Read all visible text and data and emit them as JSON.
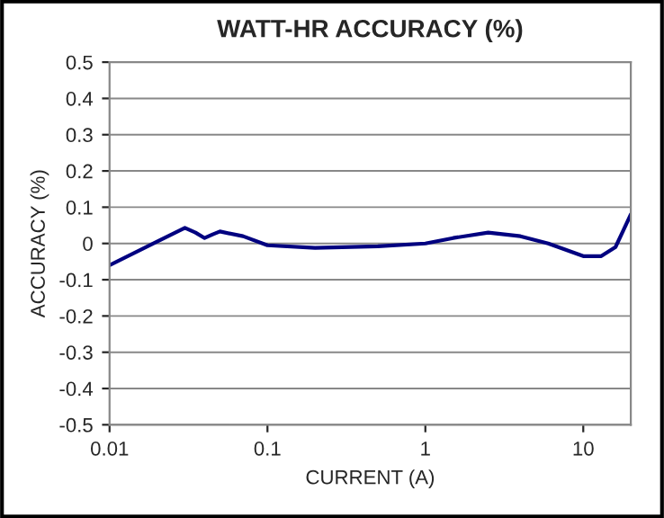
{
  "chart_data": {
    "type": "line",
    "title": "WATT-HR ACCURACY (%)",
    "xlabel": "CURRENT (A)",
    "ylabel": "ACCURACY (%)",
    "log": "x",
    "grid": "y",
    "marker": "none",
    "line_style": "solid",
    "xlim": [
      0.01,
      20
    ],
    "xticks": [
      0.01,
      0.1,
      1,
      10
    ],
    "ylim": [
      -0.5,
      0.5
    ],
    "yticks": [
      -0.5,
      -0.4,
      -0.3,
      -0.2,
      -0.1,
      0,
      0.1,
      0.2,
      0.3,
      0.4,
      0.5
    ],
    "series": [
      {
        "color": "#000080",
        "x": [
          0.01,
          0.02,
          0.03,
          0.035,
          0.04,
          0.045,
          0.05,
          0.07,
          0.1,
          0.2,
          0.5,
          1,
          1.5,
          2.5,
          4,
          6,
          10,
          13,
          16,
          20
        ],
        "values": [
          -0.06,
          0.005,
          0.043,
          0.03,
          0.015,
          0.025,
          0.033,
          0.02,
          -0.005,
          -0.012,
          -0.008,
          0,
          0.015,
          0.03,
          0.02,
          0,
          -0.035,
          -0.035,
          -0.01,
          0.08
        ]
      }
    ]
  }
}
